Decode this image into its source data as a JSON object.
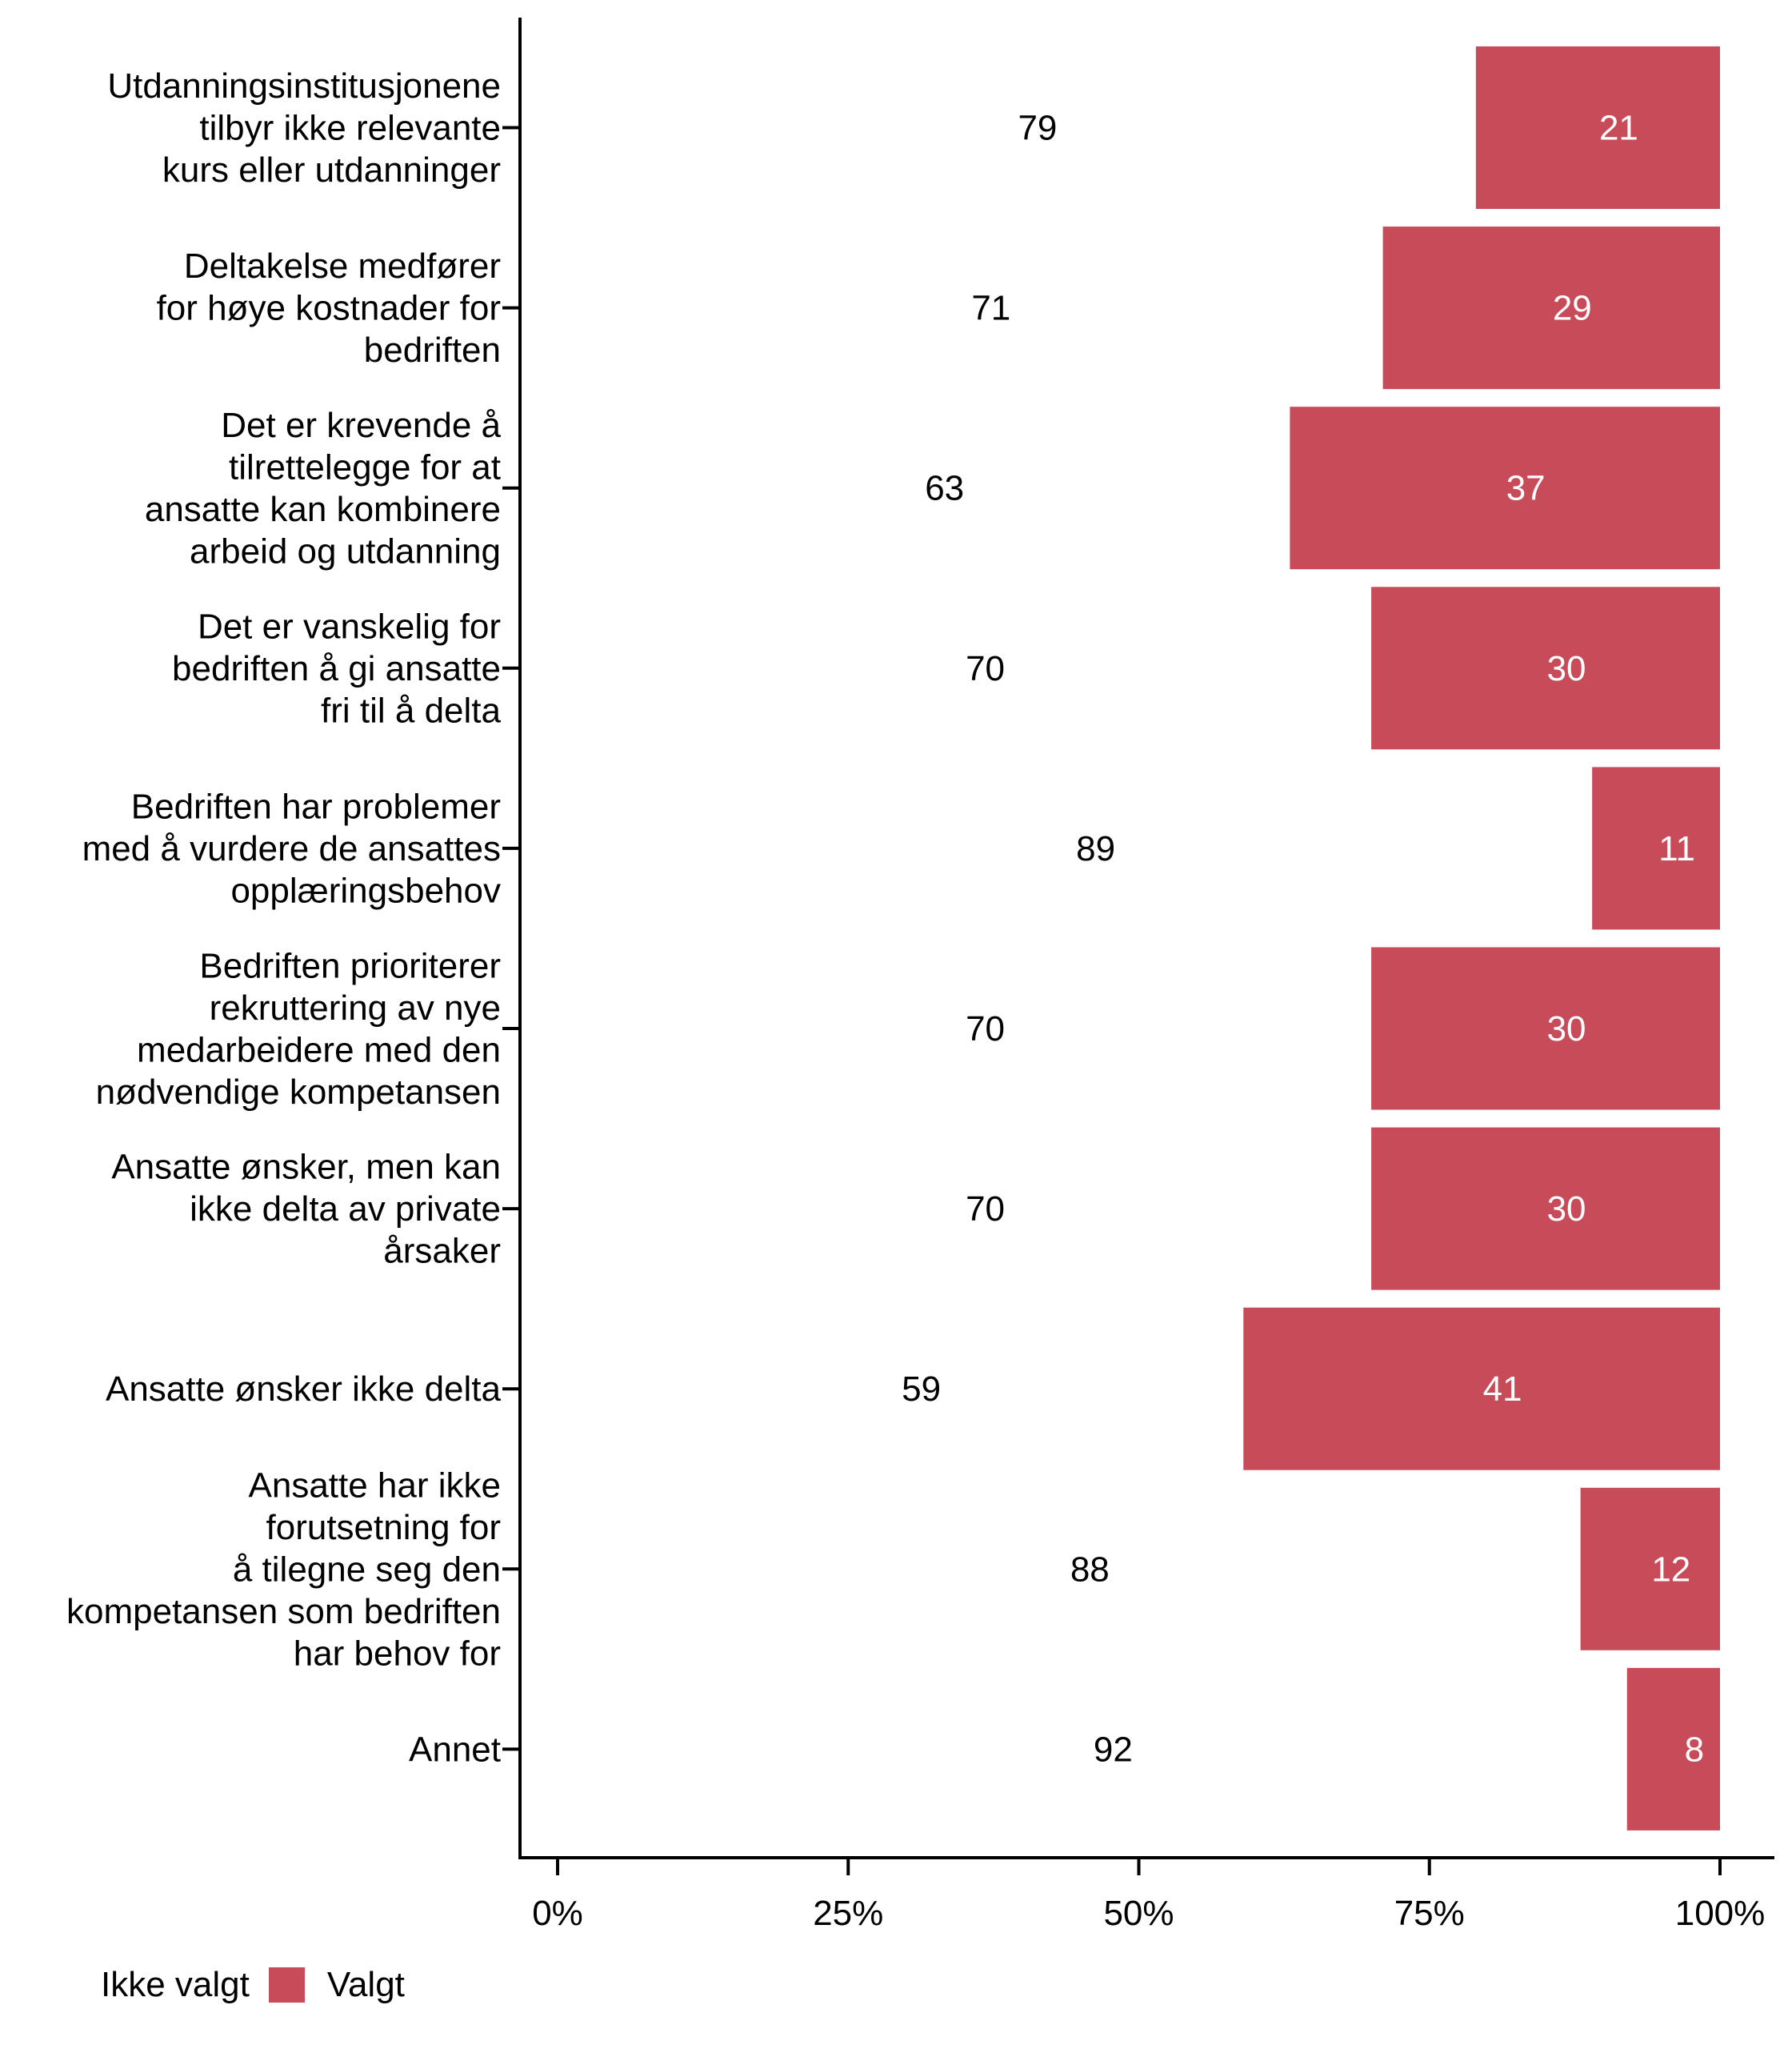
{
  "chart_data": {
    "type": "bar",
    "orientation": "horizontal",
    "stacked": true,
    "title": "",
    "xlabel": "",
    "ylabel": "",
    "xlim": [
      0,
      100
    ],
    "x_ticks": [
      "0%",
      "25%",
      "50%",
      "75%",
      "100%"
    ],
    "grid": false,
    "legend_position": "bottom-left",
    "categories": [
      [
        "Utdanningsinstitusjonene",
        "tilbyr ikke relevante",
        "kurs eller utdanninger"
      ],
      [
        "Deltakelse medfører",
        "for høye kostnader for",
        "bedriften"
      ],
      [
        "Det er krevende å",
        "tilrettelegge for at",
        "ansatte kan kombinere",
        "arbeid og utdanning"
      ],
      [
        "Det er vanskelig for",
        "bedriften å gi ansatte",
        "fri til å delta"
      ],
      [
        "Bedriften har problemer",
        "med å vurdere de ansattes",
        "opplæringsbehov"
      ],
      [
        "Bedriften prioriterer",
        "rekruttering av nye",
        "medarbeidere med den",
        "nødvendige kompetansen"
      ],
      [
        "Ansatte ønsker, men kan",
        "ikke delta av private",
        "årsaker"
      ],
      [
        "Ansatte ønsker ikke delta"
      ],
      [
        "Ansatte har ikke",
        "forutsetning for",
        "å tilegne seg den",
        "kompetansen som bedriften",
        "har behov for"
      ],
      [
        "Annet"
      ]
    ],
    "series": [
      {
        "name": "Ikke valgt",
        "color": "#FFFFFF",
        "label_color": "#000000",
        "values": [
          79,
          71,
          63,
          70,
          89,
          70,
          70,
          59,
          88,
          92
        ]
      },
      {
        "name": "Valgt",
        "color": "#C84B5A",
        "label_color": "#FFFFFF",
        "values": [
          21,
          29,
          37,
          30,
          11,
          30,
          30,
          41,
          12,
          8
        ]
      }
    ]
  },
  "legend": {
    "items": [
      {
        "label": "Ikke valgt",
        "color": "#FFFFFF"
      },
      {
        "label": "Valgt",
        "color": "#C84B5A"
      }
    ]
  }
}
